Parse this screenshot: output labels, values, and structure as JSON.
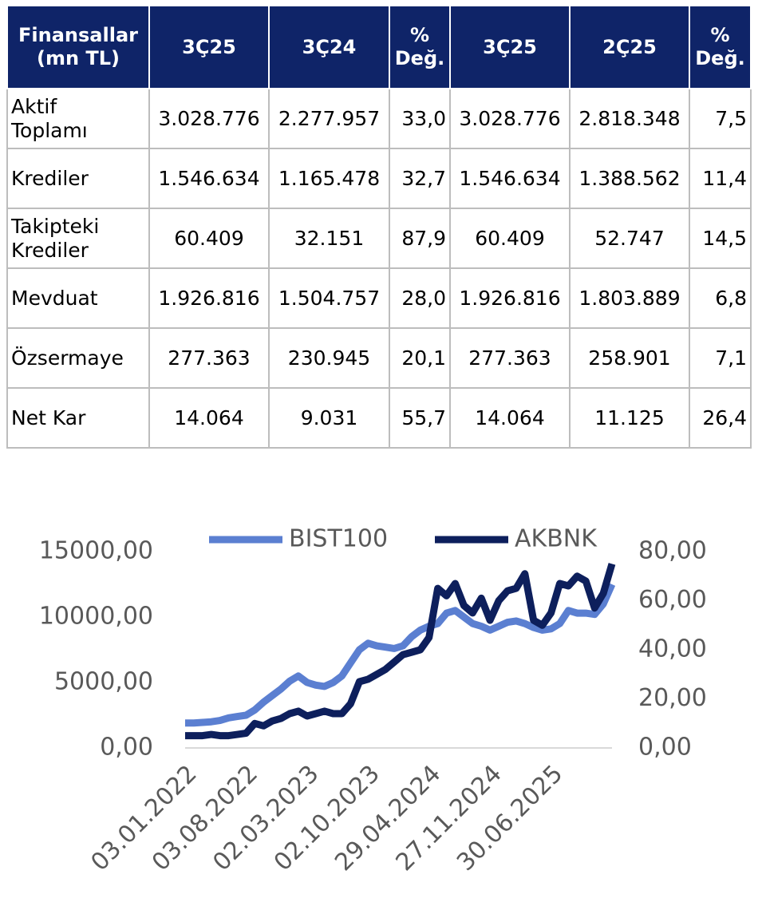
{
  "table": {
    "header": [
      "Finansallar\n(mn TL)",
      "3Ç25",
      "3Ç24",
      "%\nDeğ.",
      "3Ç25",
      "2Ç25",
      "%\nDeğ."
    ],
    "rows": [
      [
        "Aktif\nToplamı",
        "3.028.776",
        "2.277.957",
        "33,0",
        "3.028.776",
        "2.818.348",
        "7,5"
      ],
      [
        "Krediler",
        "1.546.634",
        "1.165.478",
        "32,7",
        "1.546.634",
        "1.388.562",
        "11,4"
      ],
      [
        "Takipteki\nKrediler",
        "60.409",
        "32.151",
        "87,9",
        "60.409",
        "52.747",
        "14,5"
      ],
      [
        "Mevduat",
        "1.926.816",
        "1.504.757",
        "28,0",
        "1.926.816",
        "1.803.889",
        "6,8"
      ],
      [
        "Özsermaye",
        "277.363",
        "230.945",
        "20,1",
        "277.363",
        "258.901",
        "7,1"
      ],
      [
        "Net Kar",
        "14.064",
        "9.031",
        "55,7",
        "14.064",
        "11.125",
        "26,4"
      ]
    ]
  },
  "chart_data": {
    "type": "line",
    "legend": "top",
    "categories": [
      "03.01.2022",
      null,
      null,
      null,
      null,
      null,
      null,
      "03.08.2022",
      null,
      null,
      null,
      null,
      null,
      null,
      "02.03.2023",
      null,
      null,
      null,
      null,
      null,
      null,
      "02.10.2023",
      null,
      null,
      null,
      null,
      null,
      null,
      "29.04.2024",
      null,
      null,
      null,
      null,
      null,
      null,
      "27.11.2024",
      null,
      null,
      null,
      null,
      null,
      null,
      "30.06.2025",
      null,
      null,
      null,
      null,
      null,
      null,
      null
    ],
    "series": [
      {
        "name": "BIST100",
        "color": "#5b7fd1",
        "values": [
          1900,
          1900,
          1950,
          2000,
          2100,
          2300,
          2400,
          2500,
          2900,
          3500,
          4000,
          4500,
          5100,
          5500,
          5000,
          4800,
          4700,
          5000,
          5500,
          6500,
          7500,
          8000,
          7800,
          7700,
          7600,
          7800,
          8500,
          9000,
          9300,
          9500,
          10300,
          10500,
          10000,
          9500,
          9300,
          9000,
          9300,
          9600,
          9700,
          9500,
          9200,
          9000,
          9100,
          9500,
          10500,
          10300,
          10300,
          10200,
          11000,
          12500
        ]
      },
      {
        "name": "AKBNK",
        "color": "#0d1f5c",
        "axis": "y2",
        "values": [
          5,
          5,
          5,
          5.5,
          5,
          5,
          5.5,
          6,
          10,
          9,
          11,
          12,
          14,
          15,
          13,
          14,
          15,
          14,
          14,
          18,
          27,
          28,
          30,
          32,
          35,
          38,
          39,
          40,
          45,
          65,
          62,
          67,
          58,
          55,
          61,
          52,
          60,
          64,
          65,
          71,
          52,
          50,
          55,
          67,
          66,
          70,
          68,
          57,
          63,
          75
        ]
      }
    ],
    "ylim": [
      0,
      15000
    ],
    "yticks": [
      {
        "value": 0,
        "label": "0,00"
      },
      {
        "value": 5000,
        "label": "5000,00"
      },
      {
        "value": 10000,
        "label": "10000,00"
      },
      {
        "value": 15000,
        "label": "15000,00"
      }
    ],
    "y2lim": [
      0,
      80
    ],
    "y2ticks": [
      {
        "value": 0,
        "label": "0,00"
      },
      {
        "value": 20,
        "label": "20,00"
      },
      {
        "value": 40,
        "label": "40,00"
      },
      {
        "value": 60,
        "label": "60,00"
      },
      {
        "value": 80,
        "label": "80,00"
      }
    ]
  }
}
